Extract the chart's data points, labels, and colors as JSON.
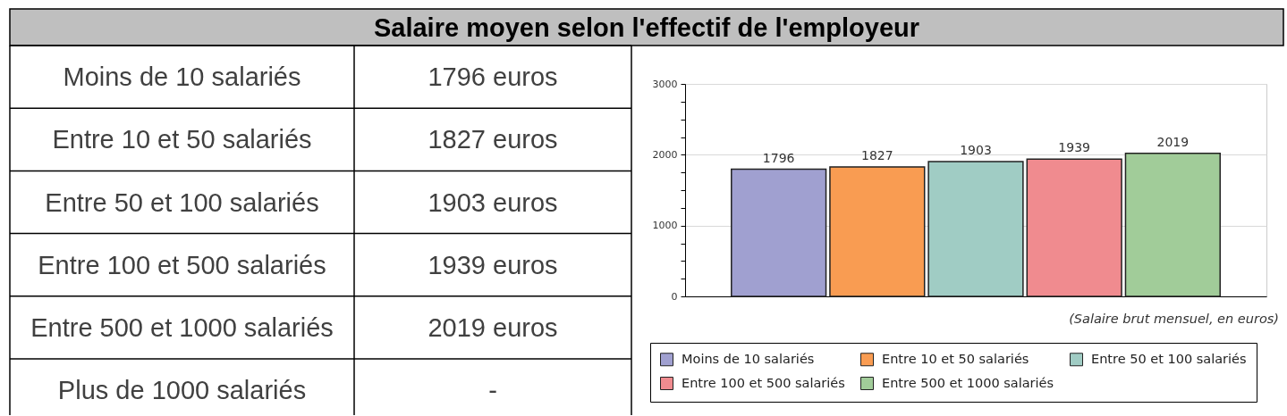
{
  "chart_data": [
    {
      "type": "other",
      "title": "Salaire moyen selon l'effectif de l'employeur",
      "annotations": [
        "Moins de 10 salariés",
        "1796 euros",
        "Entre 10 et 50 salariés",
        "1827 euros",
        "Entre 50 et 100 salariés",
        "1903 euros",
        "Entre 100 et 500 salariés",
        "1939 euros",
        "Entre 500 et 1000 salariés",
        "2019 euros",
        "Plus de 1000 salariés",
        "-"
      ]
    },
    {
      "type": "bar",
      "stacked": true,
      "categories": [
        null,
        null,
        null,
        null,
        null
      ],
      "series": [
        {
          "name": "Moins de 10 salariés",
          "color": "#a0a0d0",
          "values": [
            1796,
            null,
            null,
            null,
            null
          ]
        },
        {
          "name": "Entre 10 et 50 salariés",
          "color": "#f99c52",
          "values": [
            null,
            1827,
            null,
            null,
            null
          ]
        },
        {
          "name": "Entre 50 et 100 salariés",
          "color": "#a0ccc4",
          "values": [
            null,
            null,
            1903,
            null,
            null
          ]
        },
        {
          "name": "Entre 100 et 500 salariés",
          "color": "#f08b8f",
          "values": [
            null,
            null,
            null,
            1939,
            null
          ]
        },
        {
          "name": "Entre 500 et 1000 salariés",
          "color": "#a1cc99",
          "values": [
            null,
            null,
            null,
            null,
            2019
          ]
        }
      ],
      "ylim": [
        0,
        3000
      ],
      "yticks": [
        0,
        {
          "value": 250,
          "label": null
        },
        {
          "value": 500,
          "label": null
        },
        {
          "value": 750,
          "label": null
        },
        1000,
        {
          "value": 1250,
          "label": null
        },
        {
          "value": 1500,
          "label": null
        },
        {
          "value": 1750,
          "label": null
        },
        2000,
        {
          "value": 2250,
          "label": null
        },
        {
          "value": 2500,
          "label": null
        },
        {
          "value": 2750,
          "label": null
        },
        3000
      ],
      "grid": "y",
      "data_labels": true,
      "legend": "bottom",
      "tick_labels": "y",
      "annotations": [
        "(Salaire brut mensuel, en euros)"
      ]
    }
  ]
}
